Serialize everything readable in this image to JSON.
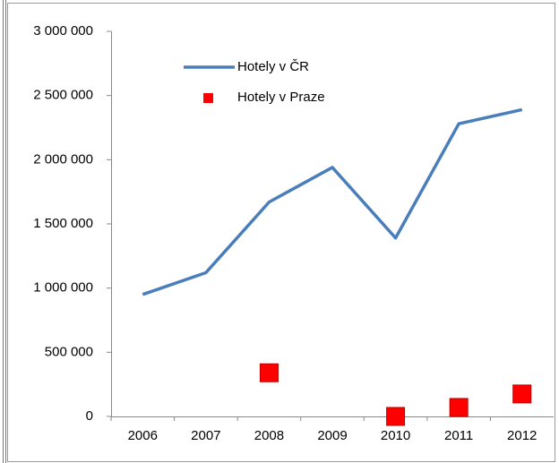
{
  "chart_data": {
    "type": "line",
    "categories": [
      "2006",
      "2007",
      "2008",
      "2009",
      "2010",
      "2011",
      "2012"
    ],
    "series": [
      {
        "name": "Hotely v ČR",
        "color": "#4a7ebb",
        "style": "line",
        "values": [
          950000,
          1120000,
          1670000,
          1940000,
          1390000,
          2280000,
          2390000
        ]
      },
      {
        "name": "Hotely v Praze",
        "color": "#ff0000",
        "style": "markers",
        "values": [
          null,
          null,
          340000,
          null,
          0,
          70000,
          175000
        ]
      }
    ],
    "ylim": [
      0,
      3000000
    ],
    "yticks": [
      {
        "value": 0,
        "label": "0"
      },
      {
        "value": 500000,
        "label": "500 000"
      },
      {
        "value": 1000000,
        "label": "1 000 000"
      },
      {
        "value": 1500000,
        "label": "1 500 000"
      },
      {
        "value": 2000000,
        "label": "2 000 000"
      },
      {
        "value": 2500000,
        "label": "2 500 000"
      },
      {
        "value": 3000000,
        "label": "3 000 000"
      }
    ],
    "grid": false
  }
}
